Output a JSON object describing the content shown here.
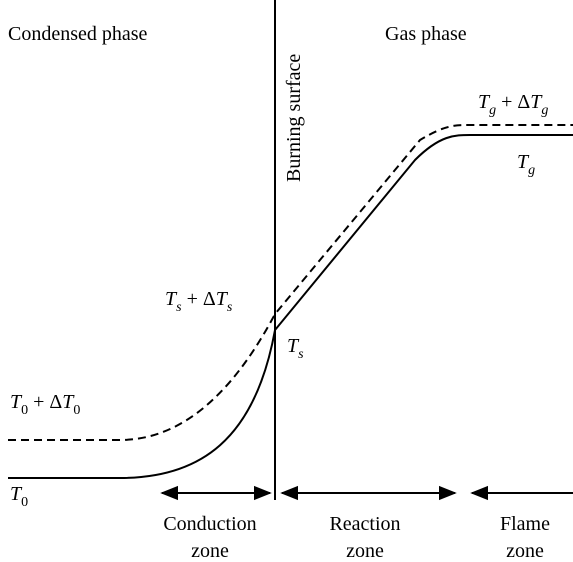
{
  "regions": {
    "condensed": "Condensed phase",
    "gas": "Gas phase",
    "surface": "Burning surface"
  },
  "temperatures": [
    {
      "parts": [
        {
          "t": "T",
          "italic": true
        },
        {
          "t": "g",
          "sub": true,
          "italic": true
        },
        {
          "t": " + Δ"
        },
        {
          "t": "T",
          "italic": true
        },
        {
          "t": "g",
          "sub": true,
          "italic": true
        }
      ]
    },
    {
      "parts": [
        {
          "t": "T",
          "italic": true
        },
        {
          "t": "g",
          "sub": true,
          "italic": true
        }
      ]
    },
    {
      "parts": [
        {
          "t": "T",
          "italic": true
        },
        {
          "t": "s",
          "sub": true,
          "italic": true
        },
        {
          "t": " + Δ"
        },
        {
          "t": "T",
          "italic": true
        },
        {
          "t": "s",
          "sub": true,
          "italic": true
        }
      ]
    },
    {
      "parts": [
        {
          "t": "T",
          "italic": true
        },
        {
          "t": "s",
          "sub": true,
          "italic": true
        }
      ]
    },
    {
      "parts": [
        {
          "t": "T",
          "italic": true
        },
        {
          "t": "0",
          "sub": true
        },
        {
          "t": " + Δ"
        },
        {
          "t": "T",
          "italic": true
        },
        {
          "t": "0",
          "sub": true
        }
      ]
    },
    {
      "parts": [
        {
          "t": "T",
          "italic": true
        },
        {
          "t": "0",
          "sub": true
        }
      ]
    }
  ],
  "zones": [
    {
      "line1": "Conduction",
      "line2": "zone"
    },
    {
      "line1": "Reaction",
      "line2": "zone"
    },
    {
      "line1": "Flame",
      "line2": "zone"
    }
  ]
}
